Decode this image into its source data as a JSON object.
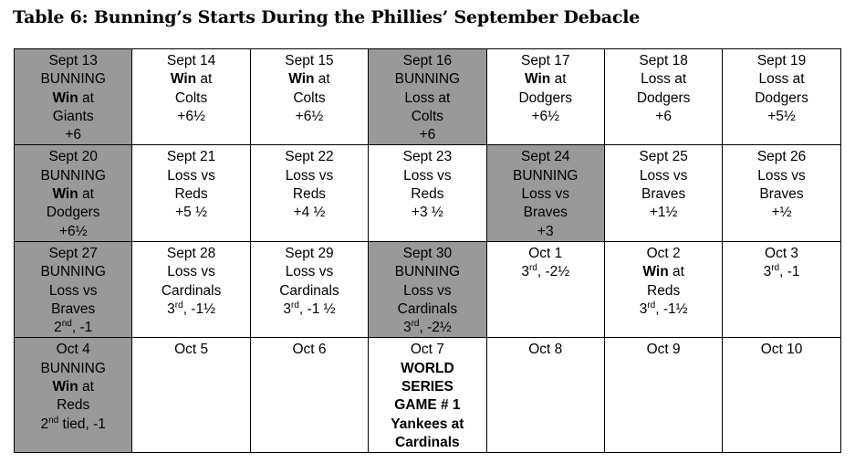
{
  "title": "Table 6: Bunning’s Starts During the Phillies’ September Debacle",
  "weeks": [
    [
      {
        "shaded": true,
        "lines": [
          {
            "t": "Sept 13"
          },
          {
            "t": "BUNNING"
          },
          {
            "b": "Win",
            "t": " at"
          },
          {
            "t": "Giants"
          },
          {
            "t": "+6"
          }
        ]
      },
      {
        "shaded": false,
        "lines": [
          {
            "t": "Sept 14"
          },
          {
            "b": "Win",
            "t": " at"
          },
          {
            "t": "Colts"
          },
          {
            "t": "+6½"
          }
        ]
      },
      {
        "shaded": false,
        "lines": [
          {
            "t": "Sept 15"
          },
          {
            "b": "Win",
            "t": " at"
          },
          {
            "t": "Colts"
          },
          {
            "t": "+6½"
          }
        ]
      },
      {
        "shaded": true,
        "lines": [
          {
            "t": "Sept 16"
          },
          {
            "t": "BUNNING"
          },
          {
            "t": "Loss at"
          },
          {
            "t": "Colts"
          },
          {
            "t": "+6"
          }
        ]
      },
      {
        "shaded": false,
        "lines": [
          {
            "t": "Sept 17"
          },
          {
            "b": "Win",
            "t": " at"
          },
          {
            "t": "Dodgers"
          },
          {
            "t": "+6½"
          }
        ]
      },
      {
        "shaded": false,
        "lines": [
          {
            "t": "Sept 18"
          },
          {
            "t": "Loss at"
          },
          {
            "t": "Dodgers"
          },
          {
            "t": "+6"
          }
        ]
      },
      {
        "shaded": false,
        "lines": [
          {
            "t": "Sept 19"
          },
          {
            "t": "Loss at"
          },
          {
            "t": "Dodgers"
          },
          {
            "t": "+5½"
          }
        ]
      }
    ],
    [
      {
        "shaded": true,
        "lines": [
          {
            "t": "Sept 20"
          },
          {
            "t": "BUNNING"
          },
          {
            "b": "Win",
            "t": " at"
          },
          {
            "t": "Dodgers"
          },
          {
            "t": "+6½"
          }
        ]
      },
      {
        "shaded": false,
        "lines": [
          {
            "t": "Sept 21"
          },
          {
            "t": "Loss vs"
          },
          {
            "t": "Reds"
          },
          {
            "t": "+5 ½"
          }
        ]
      },
      {
        "shaded": false,
        "lines": [
          {
            "t": "Sept 22"
          },
          {
            "t": "Loss vs"
          },
          {
            "t": "Reds"
          },
          {
            "t": "+4 ½"
          }
        ]
      },
      {
        "shaded": false,
        "lines": [
          {
            "t": "Sept 23"
          },
          {
            "t": "Loss vs"
          },
          {
            "t": "Reds"
          },
          {
            "t": "+3 ½"
          }
        ]
      },
      {
        "shaded": true,
        "lines": [
          {
            "t": "Sept 24"
          },
          {
            "t": "BUNNING"
          },
          {
            "t": "Loss vs"
          },
          {
            "t": "Braves"
          },
          {
            "t": "+3"
          }
        ]
      },
      {
        "shaded": false,
        "lines": [
          {
            "t": "Sept 25"
          },
          {
            "t": "Loss vs"
          },
          {
            "t": "Braves"
          },
          {
            "t": "+1½"
          }
        ]
      },
      {
        "shaded": false,
        "lines": [
          {
            "t": "Sept 26"
          },
          {
            "t": "Loss vs"
          },
          {
            "t": "Braves"
          },
          {
            "t": "+½"
          }
        ]
      }
    ],
    [
      {
        "shaded": true,
        "lines": [
          {
            "t": "Sept 27"
          },
          {
            "t": "BUNNING"
          },
          {
            "t": "Loss vs"
          },
          {
            "t": "Braves"
          },
          {
            "t": "2",
            "s": "nd",
            "a": ", -1"
          }
        ]
      },
      {
        "shaded": false,
        "lines": [
          {
            "t": "Sept 28"
          },
          {
            "t": "Loss vs"
          },
          {
            "t": "Cardinals"
          },
          {
            "t": "3",
            "s": "rd",
            "a": ", -1½"
          }
        ]
      },
      {
        "shaded": false,
        "lines": [
          {
            "t": "Sept 29"
          },
          {
            "t": "Loss vs"
          },
          {
            "t": "Cardinals"
          },
          {
            "t": "3",
            "s": "rd",
            "a": ", -1 ½"
          }
        ]
      },
      {
        "shaded": true,
        "lines": [
          {
            "t": "Sept 30"
          },
          {
            "t": "BUNNING"
          },
          {
            "t": "Loss vs"
          },
          {
            "t": "Cardinals"
          },
          {
            "t": "3",
            "s": "rd",
            "a": ", -2½"
          }
        ]
      },
      {
        "shaded": false,
        "lines": [
          {
            "t": "Oct 1"
          },
          {
            "t": "3",
            "s": "rd",
            "a": ", -2½"
          }
        ]
      },
      {
        "shaded": false,
        "lines": [
          {
            "t": "Oct 2"
          },
          {
            "b": "Win",
            "t": " at"
          },
          {
            "t": "Reds"
          },
          {
            "t": "3",
            "s": "rd",
            "a": ", -1½"
          }
        ]
      },
      {
        "shaded": false,
        "lines": [
          {
            "t": "Oct 3"
          },
          {
            "t": "3",
            "s": "rd",
            "a": ", -1"
          }
        ]
      }
    ],
    [
      {
        "shaded": true,
        "lines": [
          {
            "t": "Oct 4"
          },
          {
            "t": "BUNNING"
          },
          {
            "b": "Win",
            "t": " at"
          },
          {
            "t": "Reds"
          },
          {
            "t": "2",
            "s": "nd",
            "a": " tied, -1"
          }
        ]
      },
      {
        "shaded": false,
        "lines": [
          {
            "t": "Oct 5"
          }
        ]
      },
      {
        "shaded": false,
        "lines": [
          {
            "t": "Oct 6"
          }
        ]
      },
      {
        "shaded": false,
        "lines": [
          {
            "t": "Oct 7"
          },
          {
            "b": "WORLD"
          },
          {
            "b": "SERIES"
          },
          {
            "b": "GAME # 1"
          },
          {
            "b": "Yankees at"
          },
          {
            "b": "Cardinals"
          }
        ]
      },
      {
        "shaded": false,
        "lines": [
          {
            "t": "Oct 8"
          }
        ]
      },
      {
        "shaded": false,
        "lines": [
          {
            "t": "Oct 9"
          }
        ]
      },
      {
        "shaded": false,
        "lines": [
          {
            "t": "Oct 10"
          }
        ]
      }
    ]
  ]
}
